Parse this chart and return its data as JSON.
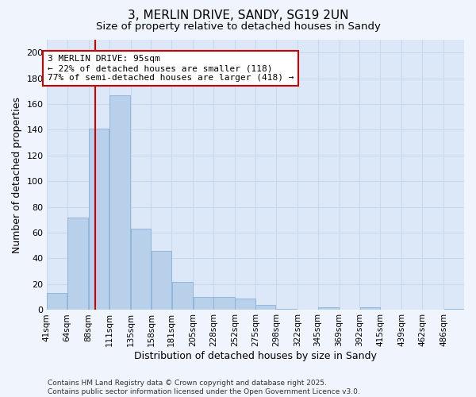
{
  "title1": "3, MERLIN DRIVE, SANDY, SG19 2UN",
  "title2": "Size of property relative to detached houses in Sandy",
  "xlabel": "Distribution of detached houses by size in Sandy",
  "ylabel": "Number of detached properties",
  "bar_color": "#b8d0ea",
  "bar_edge_color": "#8ab0d8",
  "grid_color": "#c8d8ee",
  "bg_color": "#dce8f8",
  "fig_bg_color": "#f0f4fc",
  "property_line_x": 95,
  "annotation_line1": "3 MERLIN DRIVE: 95sqm",
  "annotation_line2": "← 22% of detached houses are smaller (118)",
  "annotation_line3": "77% of semi-detached houses are larger (418) →",
  "annotation_box_color": "#cc0000",
  "bins": [
    41,
    64,
    88,
    111,
    135,
    158,
    181,
    205,
    228,
    252,
    275,
    298,
    322,
    345,
    369,
    392,
    415,
    439,
    462,
    486,
    509
  ],
  "counts": [
    13,
    72,
    141,
    167,
    63,
    46,
    22,
    10,
    10,
    9,
    4,
    1,
    0,
    2,
    0,
    2,
    0,
    0,
    0,
    1
  ],
  "footer": "Contains HM Land Registry data © Crown copyright and database right 2025.\nContains public sector information licensed under the Open Government Licence v3.0.",
  "ylim": [
    0,
    210
  ],
  "yticks": [
    0,
    20,
    40,
    60,
    80,
    100,
    120,
    140,
    160,
    180,
    200
  ]
}
